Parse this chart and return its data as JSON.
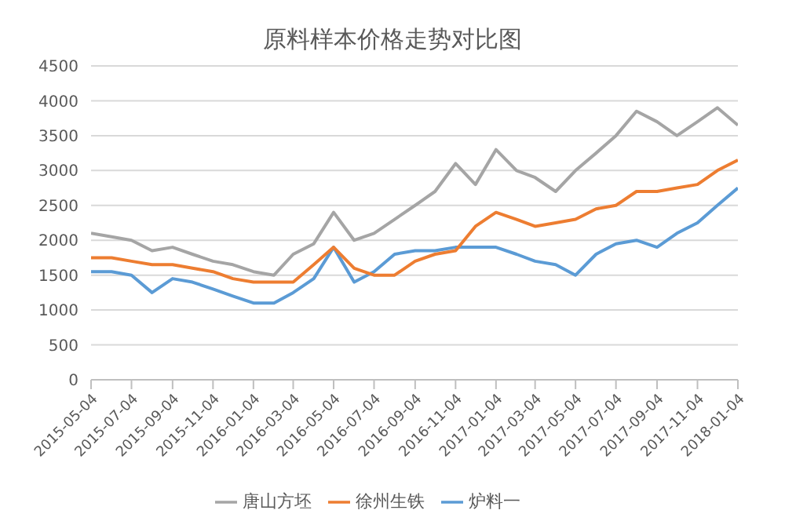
{
  "chart_data": {
    "type": "line",
    "title": "原料样本价格走势对比图",
    "x": [
      "2015-05-04",
      "2015-06-04",
      "2015-07-04",
      "2015-08-04",
      "2015-09-04",
      "2015-10-04",
      "2015-11-04",
      "2015-12-04",
      "2016-01-04",
      "2016-02-04",
      "2016-03-04",
      "2016-04-04",
      "2016-05-04",
      "2016-06-04",
      "2016-07-04",
      "2016-08-04",
      "2016-09-04",
      "2016-10-04",
      "2016-11-04",
      "2016-12-04",
      "2017-01-04",
      "2017-02-04",
      "2017-03-04",
      "2017-04-04",
      "2017-05-04",
      "2017-06-04",
      "2017-07-04",
      "2017-08-04",
      "2017-09-04",
      "2017-10-04",
      "2017-11-04",
      "2017-12-04",
      "2018-01-04"
    ],
    "series": [
      {
        "name": "炉料一",
        "color": "#5b9bd5",
        "values": [
          1550,
          1550,
          1500,
          1250,
          1450,
          1400,
          1300,
          1200,
          1100,
          1100,
          1250,
          1450,
          1900,
          1400,
          1550,
          1800,
          1850,
          1850,
          1900,
          1900,
          1900,
          1800,
          1700,
          1650,
          1500,
          1800,
          1950,
          2000,
          1900,
          2100,
          2250,
          2500,
          2750
        ]
      },
      {
        "name": "徐州生铁",
        "color": "#ed7d31",
        "values": [
          1750,
          1750,
          1700,
          1650,
          1650,
          1600,
          1550,
          1450,
          1400,
          1400,
          1400,
          1650,
          1900,
          1600,
          1500,
          1500,
          1700,
          1800,
          1850,
          2200,
          2400,
          2300,
          2200,
          2250,
          2300,
          2450,
          2500,
          2700,
          2700,
          2750,
          2800,
          3000,
          3150
        ]
      },
      {
        "name": "唐山方坯",
        "color": "#a5a5a5",
        "values": [
          2100,
          2050,
          2000,
          1850,
          1900,
          1800,
          1700,
          1650,
          1550,
          1500,
          1800,
          1950,
          2400,
          2000,
          2100,
          2300,
          2500,
          2700,
          3100,
          2800,
          3300,
          3000,
          2900,
          2700,
          3000,
          3250,
          3500,
          3850,
          3700,
          3500,
          3700,
          3900,
          3650
        ]
      }
    ],
    "xlim": [
      "2015-05-04",
      "2018-01-04"
    ],
    "xticks": [
      "2015-05-04",
      "2015-07-04",
      "2015-09-04",
      "2015-11-04",
      "2016-01-04",
      "2016-03-04",
      "2016-05-04",
      "2016-07-04",
      "2016-09-04",
      "2016-11-04",
      "2017-01-04",
      "2017-03-04",
      "2017-05-04",
      "2017-07-04",
      "2017-09-04",
      "2017-11-04",
      "2018-01-04"
    ],
    "ylim": [
      0,
      4500
    ],
    "yticks": [
      0,
      500,
      1000,
      1500,
      2000,
      2500,
      3000,
      3500,
      4000,
      4500
    ],
    "grid": "y",
    "legend": "bottom",
    "marker": "none",
    "line_style": "solid"
  }
}
